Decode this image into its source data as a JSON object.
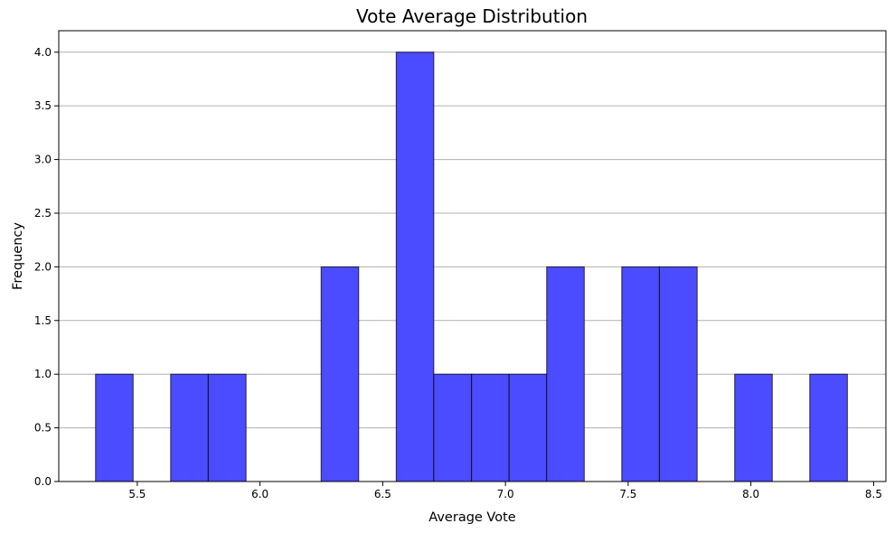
{
  "chart_data": {
    "type": "bar",
    "title": "Vote Average Distribution",
    "xlabel": "Average Vote",
    "ylabel": "Frequency",
    "xlim": [
      5.18,
      8.55
    ],
    "ylim": [
      0,
      4.2
    ],
    "grid": "y-axis only",
    "bar_color": "#4b4bff",
    "bin_edges": [
      5.33,
      5.483,
      5.636,
      5.789,
      5.943,
      6.096,
      6.249,
      6.402,
      6.555,
      6.708,
      6.862,
      7.015,
      7.168,
      7.321,
      7.474,
      7.627,
      7.781,
      7.934,
      8.087,
      8.24,
      8.393
    ],
    "values": [
      1,
      0,
      1,
      1,
      0,
      0,
      2,
      0,
      4,
      1,
      1,
      1,
      2,
      0,
      2,
      2,
      0,
      1,
      0,
      1
    ],
    "x_ticks": [
      5.5,
      6.0,
      6.5,
      7.0,
      7.5,
      8.0,
      8.5
    ],
    "x_tick_labels": [
      "5.5",
      "6.0",
      "6.5",
      "7.0",
      "7.5",
      "8.0",
      "8.5"
    ],
    "y_ticks": [
      0,
      0.5,
      1,
      1.5,
      2,
      2.5,
      3,
      3.5,
      4
    ],
    "y_tick_labels": [
      "0.0",
      "0.5",
      "1.0",
      "1.5",
      "2.0",
      "2.5",
      "3.0",
      "3.5",
      "4.0"
    ]
  }
}
